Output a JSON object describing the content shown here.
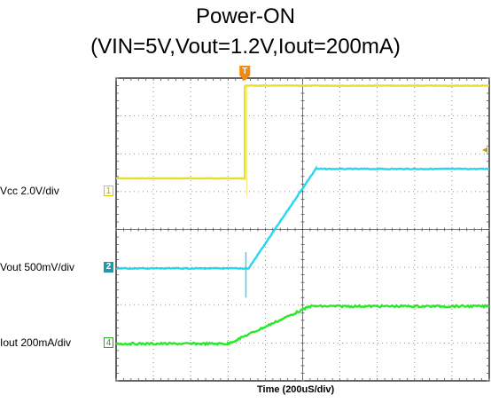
{
  "title_line1": "Power-ON",
  "title_line2": "(VIN=5V,Vout=1.2V,Iout=200mA)",
  "xlabel": "Time (200uS/div)",
  "trigger_marker": "T",
  "channels": [
    {
      "label": "Vcc  2.0V/div",
      "marker": "1",
      "color": "#e6e02a"
    },
    {
      "label": "Vout  500mV/div",
      "marker": "2",
      "color": "#22d8f0"
    },
    {
      "label": "Iout  200mA/div",
      "marker": "4",
      "color": "#28e828"
    }
  ],
  "chart_data": {
    "type": "line",
    "title": "Power-ON\n(VIN=5V,Vout=1.2V,Iout=200mA)",
    "xlabel": "Time (200uS/div)",
    "ylabel": "",
    "x_units": "div",
    "y_units": "div",
    "xlim": [
      0,
      10
    ],
    "ylim": [
      0,
      8
    ],
    "grid": true,
    "series": [
      {
        "name": "Vcc  2.0V/div",
        "color": "#e6e02a",
        "x": [
          0,
          3.45,
          3.45,
          3.55,
          10
        ],
        "y": [
          5.35,
          5.35,
          7.8,
          7.8,
          7.8
        ]
      },
      {
        "name": "Vout  500mV/div",
        "color": "#22d8f0",
        "x": [
          0,
          3.55,
          5.35,
          10
        ],
        "y": [
          2.97,
          2.97,
          5.6,
          5.6
        ]
      },
      {
        "name": "Iout  200mA/div",
        "color": "#28e828",
        "x": [
          0,
          3.0,
          5.2,
          10
        ],
        "y": [
          0.98,
          0.98,
          1.97,
          1.97
        ]
      }
    ]
  }
}
